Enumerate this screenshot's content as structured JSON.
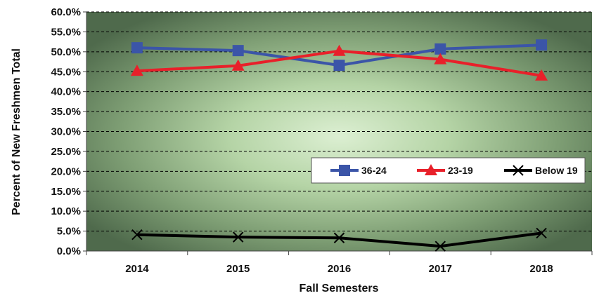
{
  "chart_data": {
    "type": "line",
    "title": "",
    "xlabel": "Fall Semesters",
    "ylabel": "Percent of New Freshmen Total",
    "categories": [
      "2014",
      "2015",
      "2016",
      "2017",
      "2018"
    ],
    "yticks": [
      "0.0%",
      "5.0%",
      "10.0%",
      "15.0%",
      "20.0%",
      "25.0%",
      "30.0%",
      "35.0%",
      "40.0%",
      "45.0%",
      "50.0%",
      "55.0%",
      "60.0%"
    ],
    "ylim": [
      0,
      60
    ],
    "grid": true,
    "legend_position": "right",
    "series": [
      {
        "name": "36-24",
        "values": [
          51.0,
          50.3,
          46.6,
          50.7,
          51.7
        ],
        "color": "#3b55a8",
        "marker": "square"
      },
      {
        "name": "23-19",
        "values": [
          45.2,
          46.5,
          50.2,
          48.1,
          44.0
        ],
        "color": "#e8202a",
        "marker": "triangle"
      },
      {
        "name": "Below 19",
        "values": [
          4.1,
          3.5,
          3.3,
          1.2,
          4.5
        ],
        "color": "#000000",
        "marker": "x"
      }
    ]
  }
}
